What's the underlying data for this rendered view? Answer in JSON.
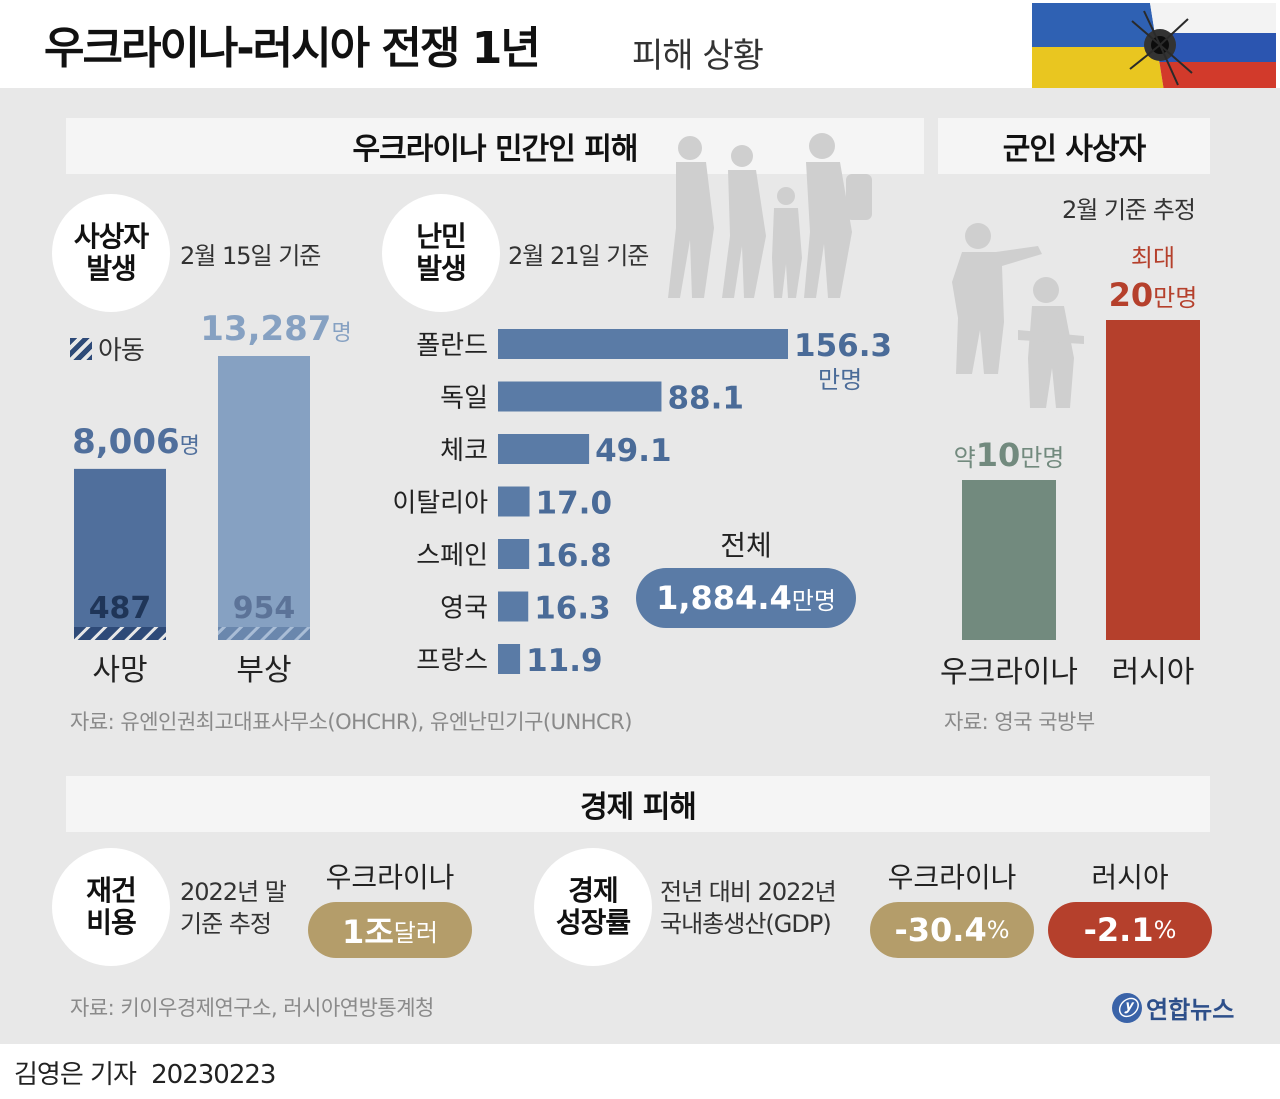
{
  "header": {
    "title": "우크라이나-러시아 전쟁 1년",
    "subtitle": "피해 상황",
    "byline": "김영은 기자",
    "date": "20230223",
    "logo": "연합뉴스"
  },
  "civilian": {
    "section_title": "우크라이나 민간인 피해",
    "casualties": {
      "circle_line1": "사상자",
      "circle_line2": "발생",
      "note": "2월 15일 기준",
      "legend_label": "아동"
    },
    "refugees": {
      "circle_line1": "난민",
      "circle_line2": "발생",
      "note": "2월 21일 기준",
      "total_label": "전체",
      "total_value": "1,884.4",
      "total_unit": "만명"
    },
    "source": "자료: 유엔인권최고대표사무소(OHCHR), 유엔난민기구(UNHCR)"
  },
  "military": {
    "section_title": "군인 사상자",
    "note": "2월 기준 추정",
    "source": "자료: 영국 국방부"
  },
  "economic": {
    "section_title": "경제 피해",
    "rebuild": {
      "circle_line1": "재건",
      "circle_line2": "비용",
      "note_line1": "2022년 말",
      "note_line2": "기준 추정",
      "country": "우크라이나",
      "value": "1조",
      "unit": "달러"
    },
    "growth": {
      "circle_line1": "경제",
      "circle_line2": "성장률",
      "note_line1": "전년 대비 2022년",
      "note_line2": "국내총생산(GDP)",
      "items": [
        {
          "country": "우크라이나",
          "value": "-30.4",
          "unit": "%",
          "color": "#b49d6a"
        },
        {
          "country": "러시아",
          "value": "-2.1",
          "unit": "%",
          "color": "#b5402c"
        }
      ]
    },
    "source": "자료: 키이우경제연구소, 러시아연방통계청"
  },
  "chart_data": [
    {
      "type": "bar",
      "title": "사상자 발생",
      "categories": [
        "사망",
        "부상"
      ],
      "series": [
        {
          "name": "전체",
          "values": [
            8006,
            13287
          ],
          "labels": [
            "8,006",
            "13,287"
          ],
          "unit": "명"
        },
        {
          "name": "아동",
          "values": [
            487,
            954
          ],
          "labels": [
            "487",
            "954"
          ]
        }
      ],
      "colors": [
        "#506f9c",
        "#86a1c2"
      ]
    },
    {
      "type": "bar",
      "orientation": "horizontal",
      "title": "난민 발생",
      "categories": [
        "폴란드",
        "독일",
        "체코",
        "이탈리아",
        "스페인",
        "영국",
        "프랑스"
      ],
      "values": [
        156.3,
        88.1,
        49.1,
        17.0,
        16.8,
        16.3,
        11.9
      ],
      "labels": [
        "156.3",
        "88.1",
        "49.1",
        "17.0",
        "16.8",
        "16.3",
        "11.9"
      ],
      "unit": "만명",
      "color": "#5a7ba6"
    },
    {
      "type": "bar",
      "title": "군인 사상자",
      "categories": [
        "우크라이나",
        "러시아"
      ],
      "values": [
        10,
        20
      ],
      "label_prefixes": [
        "약",
        "최대"
      ],
      "labels": [
        "10",
        "20"
      ],
      "unit": "만명",
      "colors": [
        "#728a7e",
        "#b5402c"
      ]
    }
  ]
}
